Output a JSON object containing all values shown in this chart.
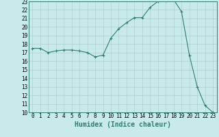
{
  "xlabel": "Humidex (Indice chaleur)",
  "ylabel": "",
  "x": [
    0,
    1,
    2,
    3,
    4,
    5,
    6,
    7,
    8,
    9,
    10,
    11,
    12,
    13,
    14,
    15,
    16,
    17,
    18,
    19,
    20,
    21,
    22,
    23
  ],
  "y": [
    17.5,
    17.5,
    17.0,
    17.2,
    17.3,
    17.3,
    17.2,
    17.0,
    16.5,
    16.7,
    18.7,
    19.8,
    20.5,
    21.1,
    21.1,
    22.3,
    23.0,
    23.1,
    23.2,
    21.8,
    16.7,
    13.0,
    10.8,
    10.0
  ],
  "line_color": "#2e7d6e",
  "marker": "+",
  "marker_size": 3,
  "bg_color": "#c8eaea",
  "grid_color": "#b0d0d0",
  "xlim": [
    -0.5,
    23.5
  ],
  "ylim": [
    10,
    23
  ],
  "xtick_fontsize": 5.5,
  "ytick_fontsize": 5.5,
  "xlabel_fontsize": 7,
  "yticks": [
    10,
    11,
    12,
    13,
    14,
    15,
    16,
    17,
    18,
    19,
    20,
    21,
    22,
    23
  ]
}
